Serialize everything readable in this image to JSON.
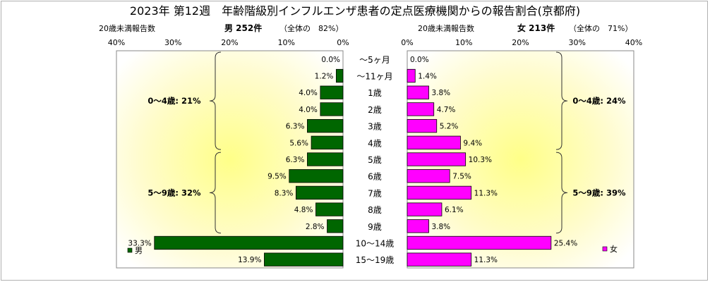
{
  "chart_data": {
    "type": "bar",
    "title": "2023年 第12週　年齢階級別インフルエンザ患者の定点医療機関からの報告割合(京都府)",
    "categories": [
      "～5ヶ月",
      "～11ヶ月",
      "1歳",
      "2歳",
      "3歳",
      "4歳",
      "5歳",
      "6歳",
      "7歳",
      "8歳",
      "9歳",
      "10～14歳",
      "15～19歳"
    ],
    "series": [
      {
        "name": "男",
        "color": "#006600",
        "header": "男 252件",
        "header_share": "（全体の　82%）",
        "values": [
          0.0,
          1.2,
          4.0,
          4.0,
          6.3,
          5.6,
          6.3,
          9.5,
          8.3,
          4.8,
          2.8,
          33.3,
          13.9
        ],
        "value_labels": [
          "0.0%",
          "1.2%",
          "4.0%",
          "4.0%",
          "6.3%",
          "5.6%",
          "6.3%",
          "9.5%",
          "8.3%",
          "4.8%",
          "2.8%",
          "33.3%",
          "13.9%"
        ],
        "groups": [
          {
            "label": "0～4歳: 21%",
            "from": 0,
            "to": 5
          },
          {
            "label": "5～9歳: 32%",
            "from": 6,
            "to": 10
          }
        ]
      },
      {
        "name": "女",
        "color": "#ff00ff",
        "header": "女 213件",
        "header_share": "（全体の　71%）",
        "values": [
          0.0,
          1.4,
          3.8,
          4.7,
          5.2,
          9.4,
          10.3,
          7.5,
          11.3,
          6.1,
          3.8,
          25.4,
          11.3
        ],
        "value_labels": [
          "0.0%",
          "1.4%",
          "3.8%",
          "4.7%",
          "5.2%",
          "9.4%",
          "10.3%",
          "7.5%",
          "11.3%",
          "6.1%",
          "3.8%",
          "25.4%",
          "11.3%"
        ],
        "groups": [
          {
            "label": "0～4歳: 24%",
            "from": 0,
            "to": 5
          },
          {
            "label": "5～9歳: 39%",
            "from": 6,
            "to": 10
          }
        ]
      }
    ],
    "left_note": "20歳未満報告数",
    "right_note": "20歳未満報告数",
    "xlim": [
      0,
      40
    ],
    "x_ticks": [
      0,
      10,
      20,
      30,
      40
    ],
    "x_tick_labels": [
      "0%",
      "10%",
      "20%",
      "30%",
      "40%"
    ],
    "legend": {
      "male": "男",
      "female": "女"
    },
    "background": "#ffff99"
  }
}
